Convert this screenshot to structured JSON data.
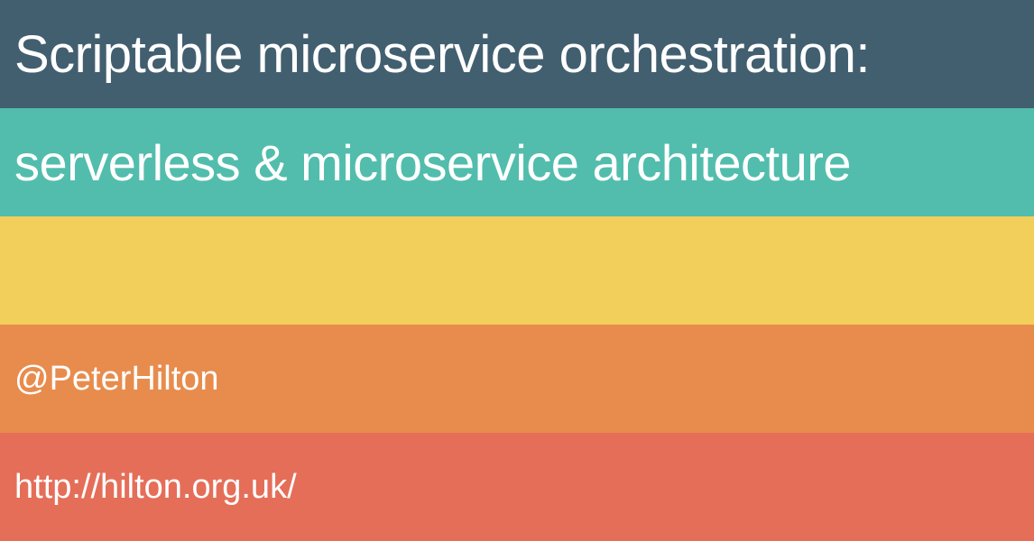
{
  "slide": {
    "title": "Scriptable microservice orchestration:",
    "subtitle": "serverless & microservice architecture",
    "handle": "@PeterHilton",
    "url": "http://hilton.org.uk/"
  },
  "colors": {
    "title_band": "#425f70",
    "subtitle_band": "#52bdad",
    "empty_band": "#f2cf5b",
    "handle_band": "#e88c4d",
    "url_band": "#e56e59",
    "text": "#ffffff"
  }
}
